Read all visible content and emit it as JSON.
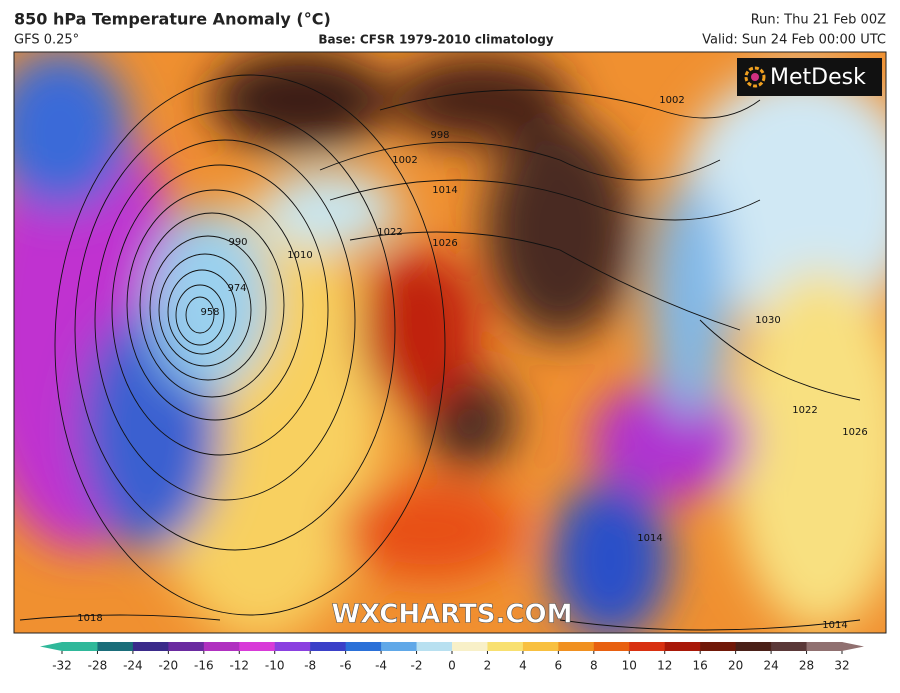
{
  "header": {
    "title": "850 hPa Temperature Anomaly (°C)",
    "model": "GFS 0.25°",
    "base": "Base: CFSR 1979-2010 climatology",
    "run": "Run: Thu 21 Feb 00Z",
    "valid": "Valid: Sun 24 Feb 00:00 UTC"
  },
  "logo": "MetDesk",
  "watermark": "WXCHARTS.COM",
  "isobar_labels": [
    "998",
    "1002",
    "1014",
    "1022",
    "1026",
    "1010",
    "990",
    "974",
    "958",
    "1018",
    "1030",
    "1022",
    "1026",
    "1014",
    "1014",
    "1002"
  ],
  "colorbar": {
    "ticks": [
      -32,
      -28,
      -24,
      -20,
      -16,
      -12,
      -10,
      -8,
      -6,
      -4,
      -2,
      0,
      2,
      4,
      6,
      8,
      10,
      12,
      16,
      20,
      24,
      28,
      32
    ],
    "colors": [
      "#2fb89a",
      "#1a6d7a",
      "#3a2a8a",
      "#6a2aa0",
      "#b030c0",
      "#d83ad8",
      "#8a40e0",
      "#3a40c8",
      "#2a70d8",
      "#60a8e8",
      "#b8e0f0",
      "#f8f0c8",
      "#f8e070",
      "#f8c040",
      "#f09020",
      "#e86010",
      "#d83010",
      "#a81808",
      "#701808",
      "#4a2018",
      "#5a3838",
      "#907070"
    ]
  }
}
